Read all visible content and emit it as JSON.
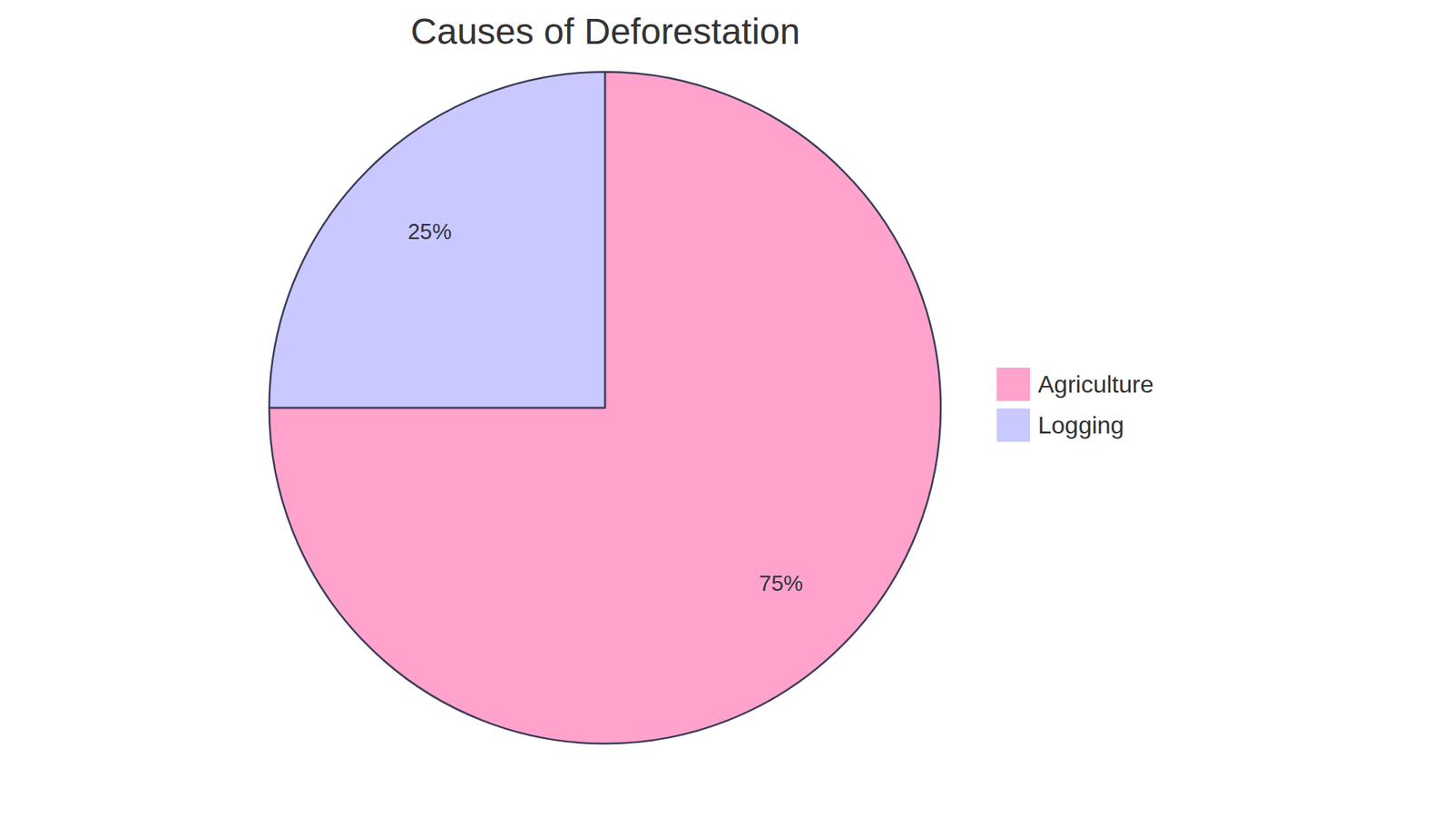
{
  "chart_data": {
    "type": "pie",
    "title": "Causes of Deforestation",
    "categories": [
      "Agriculture",
      "Logging"
    ],
    "values": [
      75,
      25
    ],
    "value_labels": [
      "75%",
      "25%"
    ],
    "colors": [
      "#ffa3cc",
      "#c9c9ff"
    ],
    "data_labels": true,
    "legend": "right"
  }
}
